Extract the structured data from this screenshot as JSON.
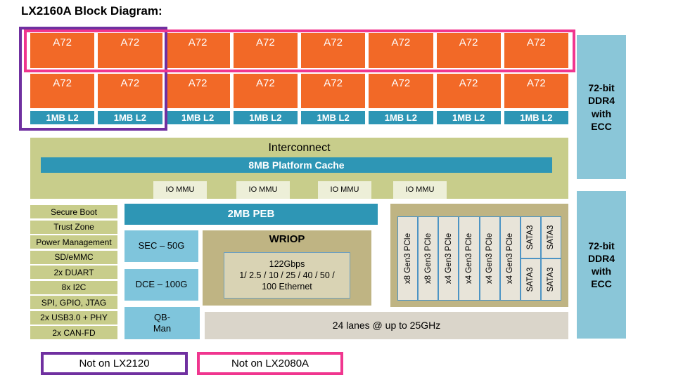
{
  "title": "LX2160A Block Diagram:",
  "colors": {
    "core_orange": "#F26927",
    "teal": "#2E96B5",
    "olive_green": "#C8CD8B",
    "iommu_cream": "#EDEFD8",
    "accel_blue": "#7FC5DC",
    "ddr_blue": "#8AC6D8",
    "tan": "#BFB483",
    "inner_tan": "#D9D3B4",
    "slot_beige": "#E8E4D9",
    "lanes_gray": "#DAD5CA",
    "purple": "#7030A0",
    "pink": "#F0368F"
  },
  "cores": {
    "row1": [
      "A72",
      "A72",
      "A72",
      "A72",
      "A72",
      "A72",
      "A72",
      "A72"
    ],
    "row2": [
      "A72",
      "A72",
      "A72",
      "A72",
      "A72",
      "A72",
      "A72",
      "A72"
    ],
    "l2": [
      "1MB L2",
      "1MB L2",
      "1MB L2",
      "1MB L2",
      "1MB L2",
      "1MB L2",
      "1MB L2",
      "1MB L2"
    ]
  },
  "interconnect": {
    "label": "Interconnect",
    "cache_label": "8MB Platform Cache",
    "iommu_labels": [
      "IO MMU",
      "IO MMU",
      "IO MMU",
      "IO MMU"
    ]
  },
  "peripherals": [
    "Secure Boot",
    "Trust Zone",
    "Power Management",
    "SD/eMMC",
    "2x DUART",
    "8x I2C",
    "SPI, GPIO, JTAG",
    "2x USB3.0 + PHY",
    "2x CAN-FD"
  ],
  "middle": {
    "peb_label": "2MB PEB",
    "sec_label": "SEC – 50G",
    "dce_label": "DCE – 100G",
    "qbman_lines": [
      "QB-",
      "Man"
    ]
  },
  "wriop": {
    "title": "WRIOP",
    "inner_lines": [
      "122Gbps",
      "1/ 2.5 / 10 / 25 / 40 / 50 /",
      "100 Ethernet"
    ]
  },
  "serdes": {
    "pcie_slots": [
      "x8 Gen3 PCIe",
      "x8 Gen3 PCIe",
      "x4 Gen3 PCIe",
      "x4 Gen3 PCIe",
      "x4 Gen3 PCIe",
      "x4 Gen3 PCIe"
    ],
    "sata_slots": [
      "SATA3",
      "SATA3",
      "SATA3",
      "SATA3"
    ],
    "lanes_label": "24 lanes @ up to 25GHz"
  },
  "memory": {
    "ddr1_lines": [
      "72-bit",
      "DDR4",
      "with",
      "ECC"
    ],
    "ddr2_lines": [
      "72-bit",
      "DDR4",
      "with",
      "ECC"
    ]
  },
  "legend": {
    "purple_label": "Not on LX2120",
    "pink_label": "Not on LX2080A"
  }
}
